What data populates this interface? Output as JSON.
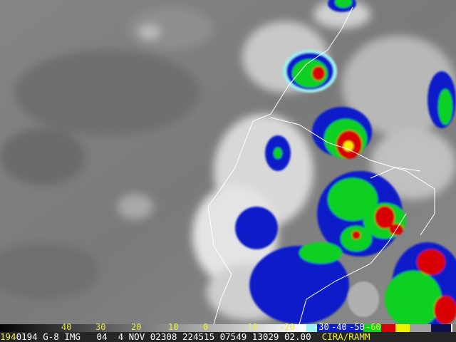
{
  "image": {
    "type": "satellite-infrared",
    "enhancement_colors": {
      "cold_cyan": "#9ff0f0",
      "blue": "#0a1ec8",
      "green": "#10d020",
      "red": "#d80000",
      "yellow": "#f0f000",
      "navy": "#101050"
    }
  },
  "colorbar": {
    "labels": [
      "40",
      "30",
      "20",
      "10",
      "0",
      "-10",
      "-20",
      "-30",
      "-40",
      "-50",
      "-60"
    ]
  },
  "info_bar": {
    "prefix": "194",
    "day": "0194",
    "satellite": "G-8",
    "product": "IMG",
    "channel": "04",
    "date": "4 NOV 02308",
    "time": "224515",
    "line": "07549",
    "element": "13029",
    "resolution": "02.00",
    "credit": "CIRA/RAMM"
  }
}
